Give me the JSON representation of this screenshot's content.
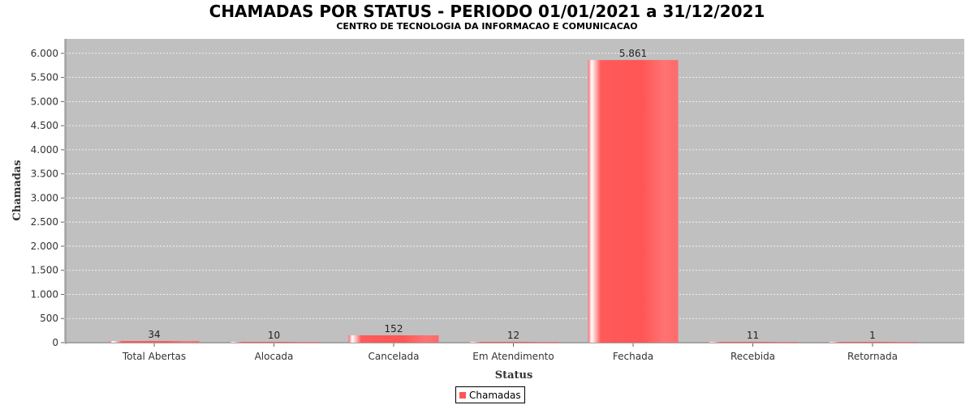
{
  "chart_data": {
    "type": "bar",
    "title": "CHAMADAS POR STATUS - PERIODO 01/01/2021 a 31/12/2021",
    "subtitle": "CENTRO DE TECNOLOGIA DA INFORMACAO E COMUNICACAO",
    "xlabel": "Status",
    "ylabel": "Chamadas",
    "categories": [
      "Total Abertas",
      "Alocada",
      "Cancelada",
      "Em Atendimento",
      "Fechada",
      "Recebida",
      "Retornada"
    ],
    "series": [
      {
        "name": "Chamadas",
        "values": [
          34,
          10,
          152,
          12,
          5861,
          11,
          1
        ]
      }
    ],
    "value_labels": [
      "34",
      "10",
      "152",
      "12",
      "5.861",
      "11",
      "1"
    ],
    "ylim": [
      0,
      6300
    ],
    "yticks": [
      0,
      500,
      1000,
      1500,
      2000,
      2500,
      3000,
      3500,
      4000,
      4500,
      5000,
      5500,
      6000
    ],
    "ytick_labels": [
      "0",
      "500",
      "1.000",
      "1.500",
      "2.000",
      "2.500",
      "3.000",
      "3.500",
      "4.000",
      "4.500",
      "5.000",
      "5.500",
      "6.000"
    ],
    "grid": true,
    "legend": "bottom-center",
    "colors": {
      "bar": "#ff5555",
      "plot_background": "#c0c0c0",
      "gridline": "#ffffff"
    }
  }
}
